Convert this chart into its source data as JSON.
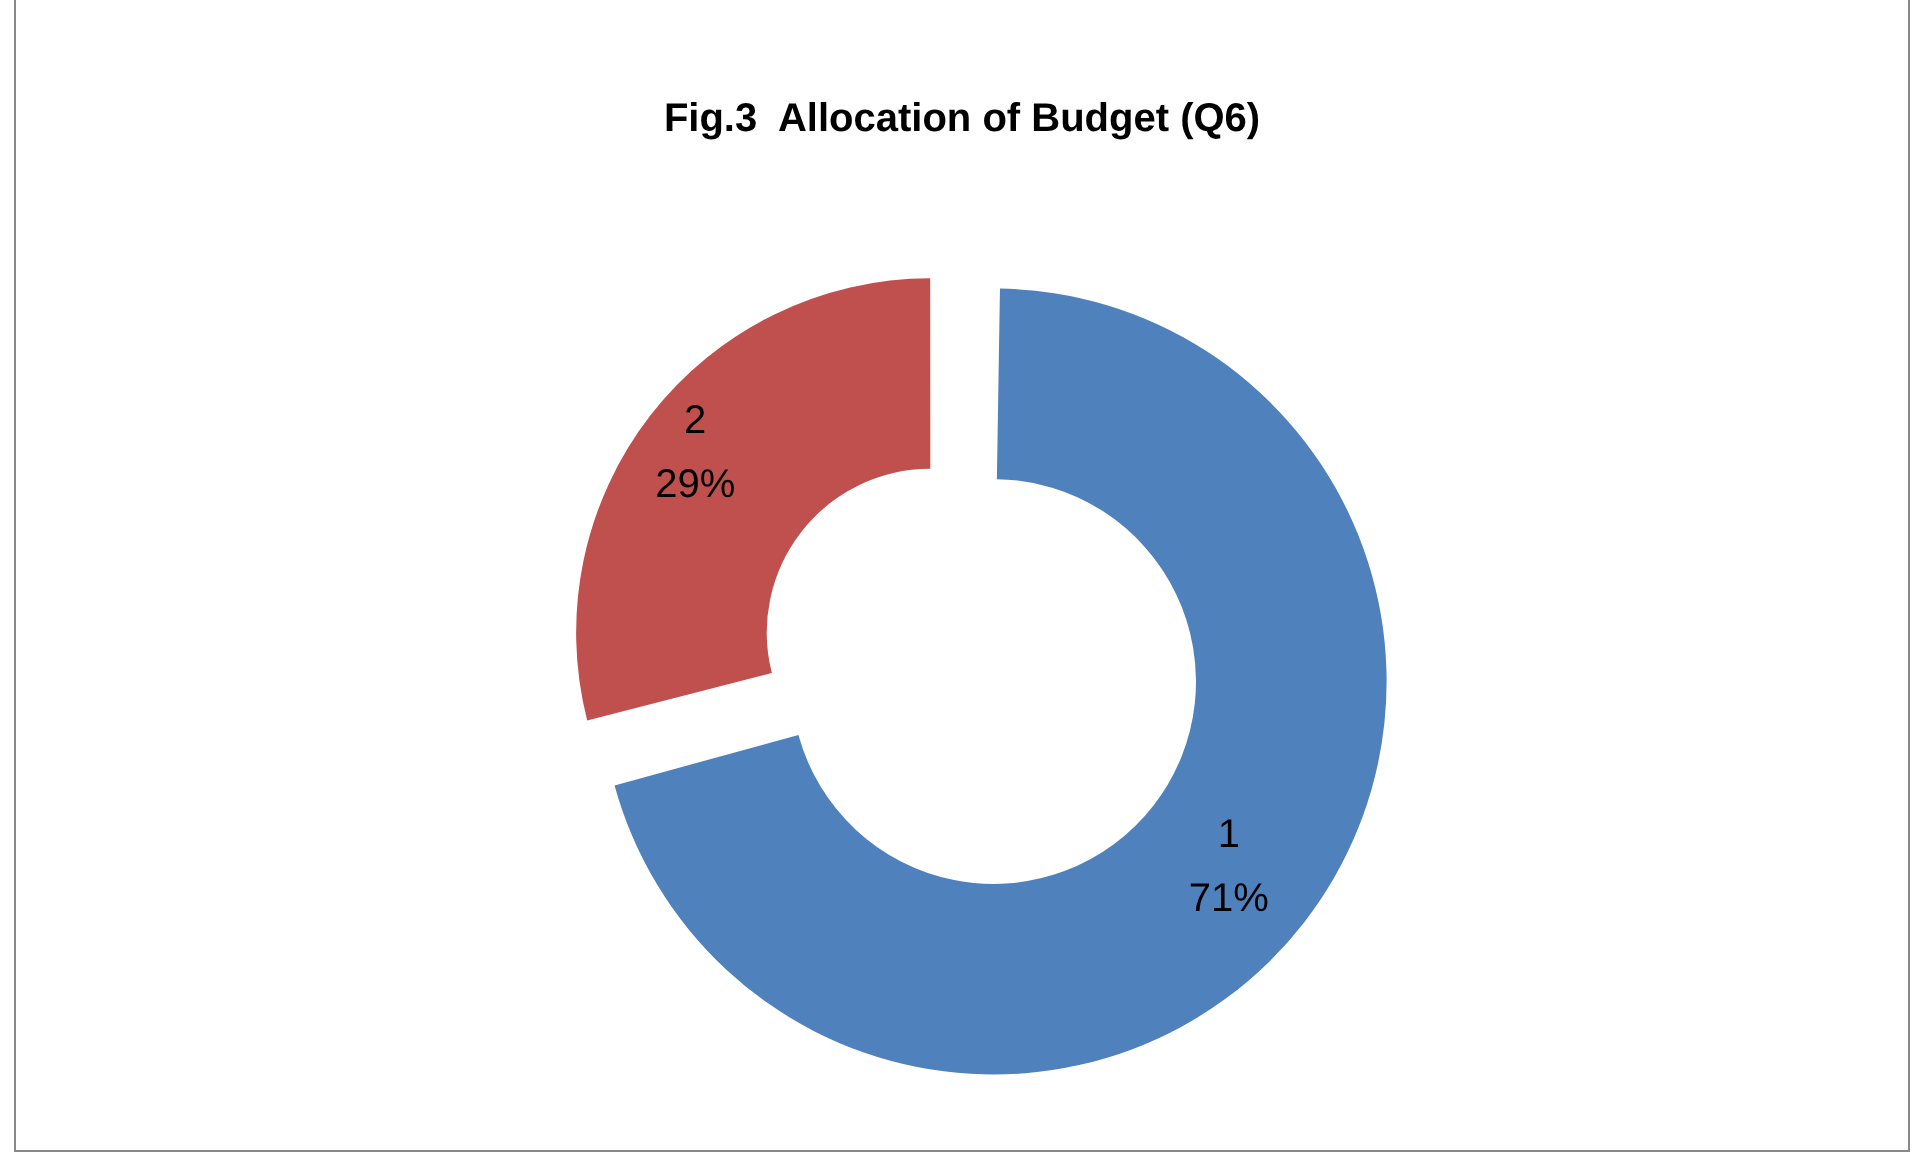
{
  "chart_data": {
    "type": "donut",
    "title": "Fig.3  Allocation of Budget (Q6)",
    "categories": [
      "1",
      "2"
    ],
    "values": [
      71,
      29
    ],
    "colors": [
      "#4f81bd",
      "#c0504d"
    ],
    "value_labels": [
      "71%",
      "29%"
    ],
    "legend": false
  }
}
